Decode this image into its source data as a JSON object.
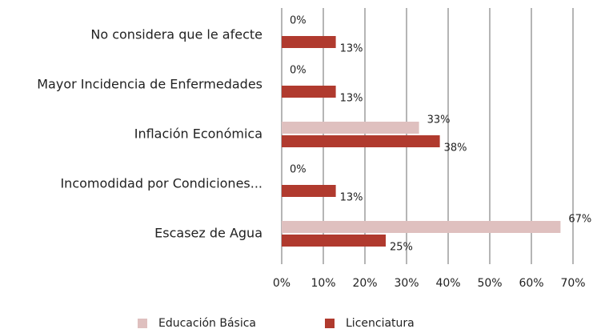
{
  "chart_data": {
    "type": "hbar",
    "categories": [
      "No considera que le afecte",
      "Mayor Incidencia de Enfermedades",
      "Inflación Económica",
      "Incomodidad por Condiciones...",
      "Escasez de Agua"
    ],
    "series": [
      {
        "name": "Educación Básica",
        "color": "#dfc0bf",
        "values": [
          0,
          0,
          33,
          0,
          67
        ],
        "value_labels": [
          "0%",
          "0%",
          "33%",
          "0%",
          "67%"
        ]
      },
      {
        "name": "Licenciatura",
        "color": "#b03a2e",
        "values": [
          13,
          13,
          38,
          13,
          25
        ],
        "value_labels": [
          "13%",
          "13%",
          "38%",
          "13%",
          "25%"
        ]
      }
    ],
    "xlim": [
      0,
      70
    ],
    "xticks": [
      {
        "value": 0,
        "label": "0%"
      },
      {
        "value": 10,
        "label": "10%"
      },
      {
        "value": 20,
        "label": "20%"
      },
      {
        "value": 30,
        "label": "30%"
      },
      {
        "value": 40,
        "label": "40%"
      },
      {
        "value": 50,
        "label": "50%"
      },
      {
        "value": 60,
        "label": "60%"
      },
      {
        "value": 70,
        "label": "70%"
      }
    ],
    "grid": true,
    "legend": "bottom"
  }
}
